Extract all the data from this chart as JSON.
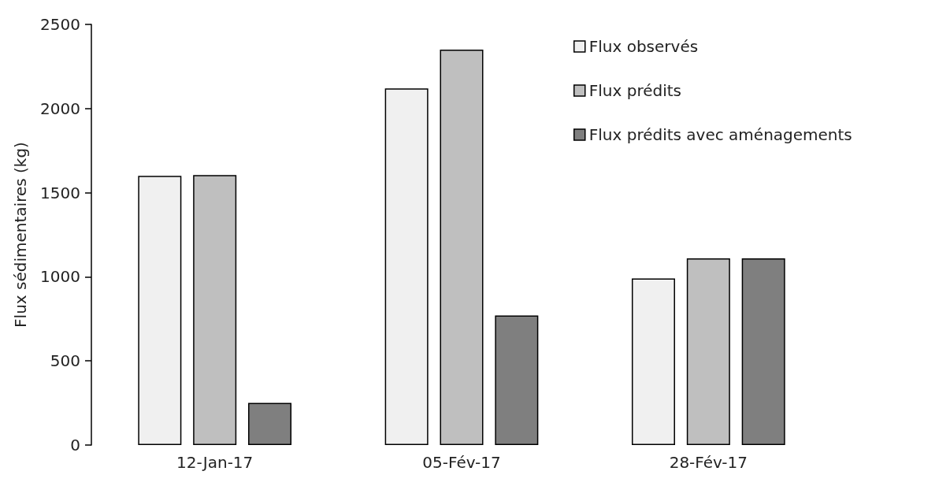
{
  "chart_data": {
    "type": "bar",
    "ylabel": "Flux sédimentaires (kg)",
    "categories": [
      "12-Jan-17",
      "05-Fév-17",
      "28-Fév-17"
    ],
    "series": [
      {
        "name": "Flux observés",
        "color": "#f0f0f0",
        "values": [
          1600,
          2120,
          990
        ]
      },
      {
        "name": "Flux prédits",
        "color": "#bfbfbf",
        "values": [
          1605,
          2350,
          1110
        ]
      },
      {
        "name": "Flux prédits avec aménagements",
        "color": "#7f7f7f",
        "values": [
          250,
          770,
          1110
        ]
      }
    ],
    "ylim": [
      0,
      2500
    ],
    "yticks": [
      0,
      500,
      1000,
      1500,
      2000,
      2500
    ],
    "grid": false,
    "legend": "top right"
  }
}
